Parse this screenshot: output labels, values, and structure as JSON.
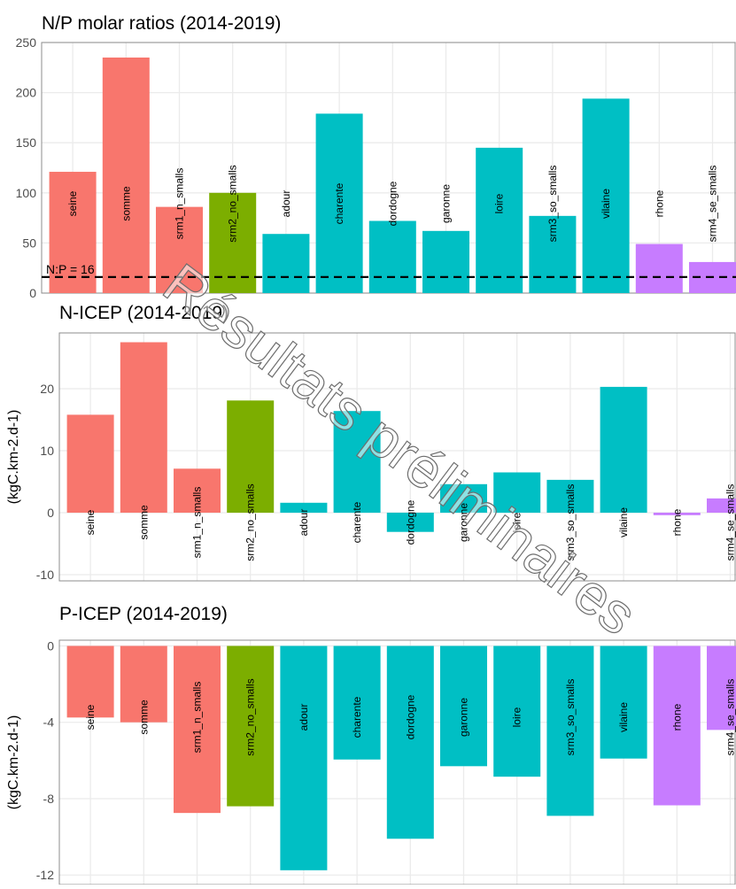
{
  "watermark": "Résultats préliminaires",
  "colors": {
    "north": "#F8766D",
    "channel": "#7CAE00",
    "atlantic": "#00BFC4",
    "mediterranean": "#C77CFF",
    "grid": "#EBEBEB",
    "axis_text": "#4D4D4D"
  },
  "chart_data": [
    {
      "type": "bar",
      "title": "N/P molar ratios (2014-2019)",
      "xlabel": "",
      "ylabel": "",
      "ylim": [
        0,
        250
      ],
      "yticks": [
        0,
        50,
        100,
        150,
        200,
        250
      ],
      "grid": true,
      "categories": [
        "seine",
        "somme",
        "srm1_n_smalls",
        "srm2_no_smalls",
        "adour",
        "charente",
        "dordogne",
        "garonne",
        "loire",
        "srm3_so_smalls",
        "vilaine",
        "rhone",
        "srm4_se_smalls"
      ],
      "values": [
        121,
        235,
        86,
        100,
        59,
        179,
        72,
        62,
        145,
        77,
        194,
        49,
        31
      ],
      "bar_colors": [
        "north",
        "north",
        "north",
        "channel",
        "atlantic",
        "atlantic",
        "atlantic",
        "atlantic",
        "atlantic",
        "atlantic",
        "atlantic",
        "mediterranean",
        "mediterranean"
      ],
      "reference_line": {
        "value": 16,
        "label": "N:P = 16",
        "style": "dashed"
      }
    },
    {
      "type": "bar",
      "title": "N-ICEP (2014-2019)",
      "xlabel": "",
      "ylabel": "(kgC.km-2.d-1)",
      "ylim": [
        -11,
        29
      ],
      "yticks": [
        -10,
        0,
        10,
        20
      ],
      "grid": true,
      "categories": [
        "seine",
        "somme",
        "srm1_n_smalls",
        "srm2_no_smalls",
        "adour",
        "charente",
        "dordogne",
        "garonne",
        "loire",
        "srm3_so_smalls",
        "vilaine",
        "rhone",
        "srm4_se_smalls"
      ],
      "values": [
        15.8,
        27.5,
        7.1,
        18.1,
        1.6,
        16.4,
        -3.1,
        4.6,
        6.5,
        5.3,
        20.3,
        -0.4,
        2.3
      ],
      "bar_colors": [
        "north",
        "north",
        "north",
        "channel",
        "atlantic",
        "atlantic",
        "atlantic",
        "atlantic",
        "atlantic",
        "atlantic",
        "atlantic",
        "mediterranean",
        "mediterranean"
      ]
    },
    {
      "type": "bar",
      "title": "P-ICEP (2014-2019)",
      "xlabel": "",
      "ylabel": "(kgC.km-2.d-1)",
      "ylim": [
        -12.5,
        0.3
      ],
      "yticks": [
        0,
        -4,
        -8,
        -12
      ],
      "grid": true,
      "categories": [
        "seine",
        "somme",
        "srm1_n_smalls",
        "srm2_no_smalls",
        "adour",
        "charente",
        "dordogne",
        "garonne",
        "loire",
        "srm3_so_smalls",
        "vilaine",
        "rhone",
        "srm4_se_smalls"
      ],
      "values": [
        -3.75,
        -4.0,
        -8.75,
        -8.4,
        -11.75,
        -5.95,
        -10.1,
        -6.3,
        -6.85,
        -8.9,
        -5.9,
        -8.35,
        -4.4
      ],
      "bar_colors": [
        "north",
        "north",
        "north",
        "channel",
        "atlantic",
        "atlantic",
        "atlantic",
        "atlantic",
        "atlantic",
        "atlantic",
        "atlantic",
        "mediterranean",
        "mediterranean"
      ]
    }
  ]
}
